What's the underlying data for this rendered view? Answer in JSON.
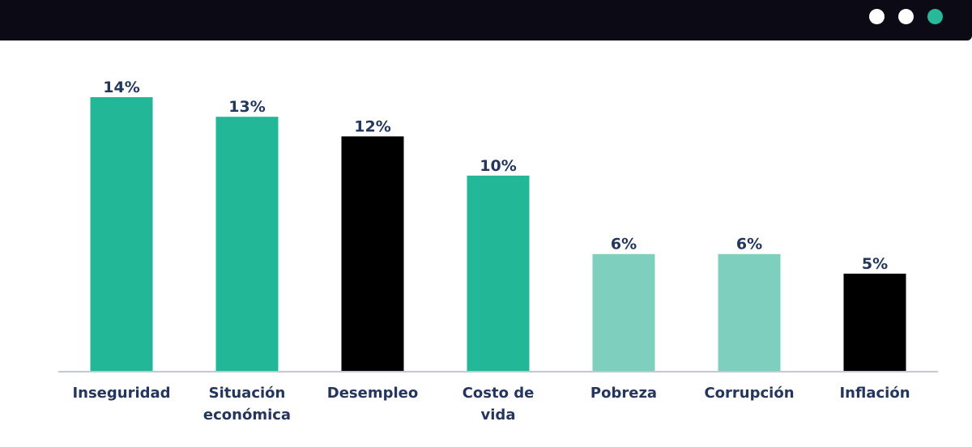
{
  "window": {
    "controls": [
      {
        "name": "window-dot-1",
        "color": "#ffffff"
      },
      {
        "name": "window-dot-2",
        "color": "#ffffff"
      },
      {
        "name": "window-dot-3",
        "color": "#27b99a"
      }
    ]
  },
  "colors": {
    "accent": "#22b797",
    "light": "#7ecfbd",
    "dark": "#000000",
    "label": "#25365e",
    "axis": "#c4c8d0"
  },
  "chart_data": {
    "type": "bar",
    "categories": [
      [
        "Inseguridad"
      ],
      [
        "Situación",
        "económica"
      ],
      [
        "Desempleo"
      ],
      [
        "Costo de",
        "vida"
      ],
      [
        "Pobreza"
      ],
      [
        "Corrupción"
      ],
      [
        "Inflación"
      ]
    ],
    "values": [
      14,
      13,
      12,
      10,
      6,
      6,
      5
    ],
    "value_labels": [
      "14%",
      "13%",
      "12%",
      "10%",
      "6%",
      "6%",
      "5%"
    ],
    "bar_colors": [
      "#22b797",
      "#22b797",
      "#000000",
      "#22b797",
      "#7ecfbd",
      "#7ecfbd",
      "#000000"
    ],
    "ylim": [
      0,
      14
    ],
    "grid": false,
    "legend": "none"
  }
}
